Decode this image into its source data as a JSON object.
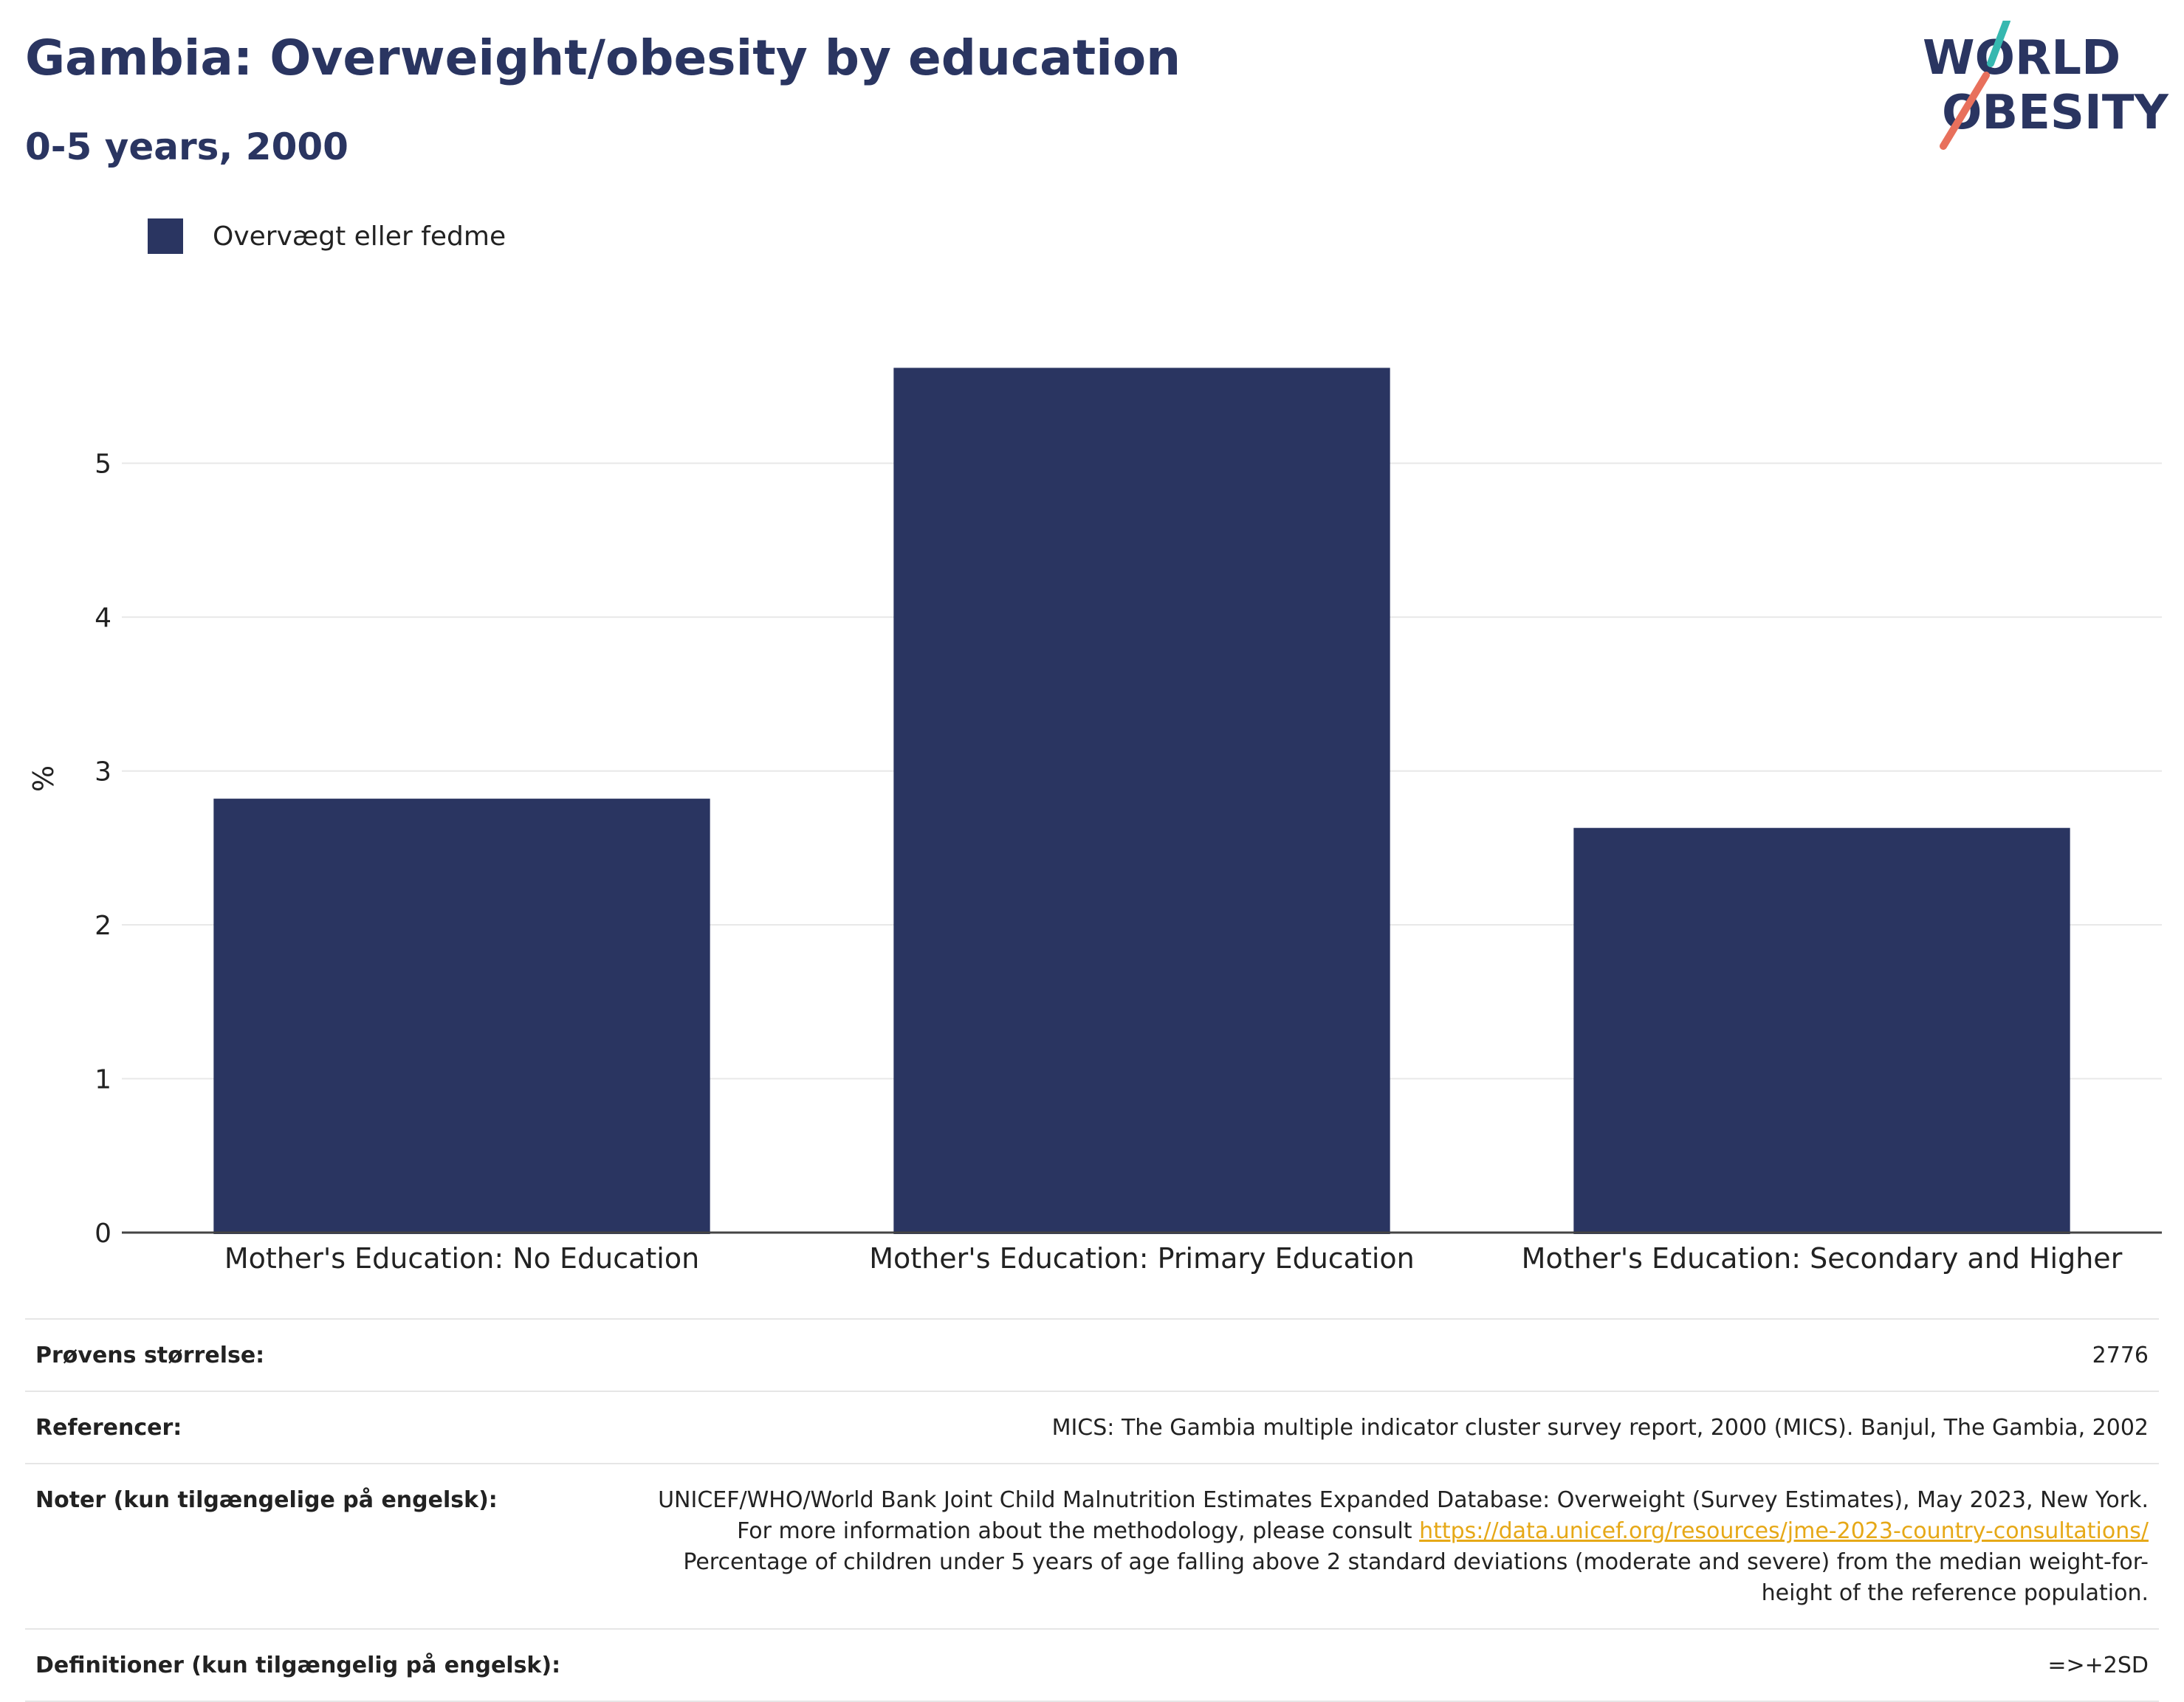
{
  "header": {
    "title": "Gambia: Overweight/obesity by education",
    "subtitle": "0-5 years, 2000"
  },
  "logo": {
    "line1": "WORLD",
    "line2": "OBESITY"
  },
  "colors": {
    "bar": "#2a3561",
    "title": "#2a3561",
    "grid": "#e8e8e8",
    "link": "#e6a817"
  },
  "chart_data": {
    "type": "bar",
    "categories": [
      "Mother's Education: No Education",
      "Mother's Education: Primary Education",
      "Mother's Education: Secondary and Higher"
    ],
    "series": [
      {
        "name": "Overvægt eller fedme",
        "values": [
          2.82,
          5.62,
          2.63
        ]
      }
    ],
    "ylabel": "%",
    "ylim": [
      0,
      5.9
    ],
    "yticks": [
      0,
      1,
      2,
      3,
      4,
      5
    ],
    "grid": true,
    "legend": "top-left"
  },
  "info": {
    "sample_label": "Prøvens størrelse:",
    "sample_value": "2776",
    "references_label": "Referencer:",
    "references_value": "MICS: The Gambia multiple indicator cluster survey report, 2000 (MICS). Banjul, The Gambia, 2002",
    "notes_label": "Noter (kun tilgængelige på engelsk):",
    "notes_text_1": "UNICEF/WHO/World Bank Joint Child Malnutrition Estimates Expanded Database: Overweight (Survey Estimates), May 2023, New York. For more information about the methodology, please consult",
    "notes_link": "https://data.unicef.org/resources/jme-2023-country-consultations/",
    "notes_text_2": "Percentage of children under 5 years of age falling above 2 standard deviations (moderate and severe) from the median weight-for-height of the reference population.",
    "definitions_label": "Definitioner (kun tilgængelig på engelsk):",
    "definitions_value": "=>+2SD"
  }
}
